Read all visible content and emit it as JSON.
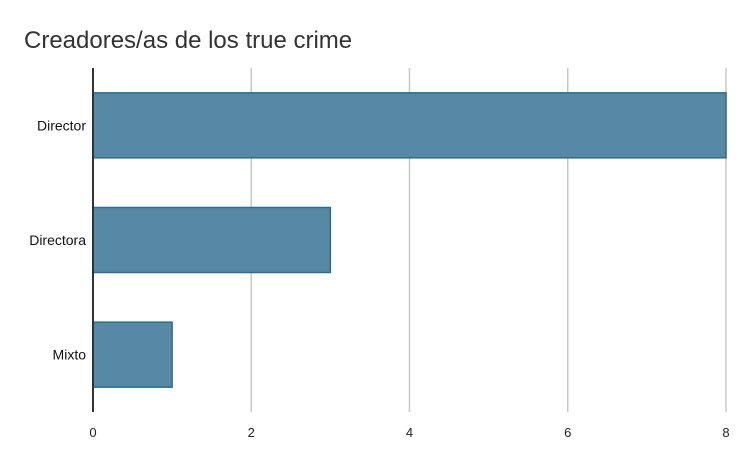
{
  "chart_data": {
    "type": "bar",
    "orientation": "horizontal",
    "title": "Creadores/as de los true crime",
    "categories": [
      "Director",
      "Directora",
      "Mixto"
    ],
    "values": [
      8,
      3,
      1
    ],
    "xlim": [
      0,
      8
    ],
    "xticks": [
      "0",
      "2",
      "4",
      "6",
      "8"
    ],
    "grid": true,
    "legend": "none",
    "colors": {
      "bar": "#5889a4",
      "bar_border": "#2d6c8c",
      "grid": "#c8c8c8",
      "axis": "#333333",
      "title": "#333333"
    }
  }
}
